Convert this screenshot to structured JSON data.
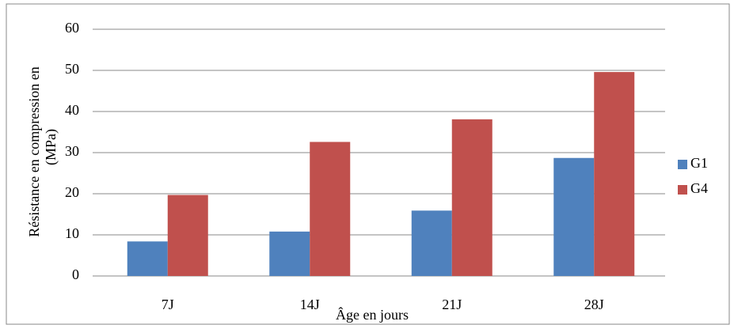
{
  "chart_data": {
    "type": "bar",
    "x_label": "Âge en jours",
    "y_label": [
      "Résistance en compression en",
      "(MPa)"
    ],
    "categories": [
      "7J",
      "14J",
      "21J",
      "28J"
    ],
    "series": [
      {
        "name": "G1",
        "color": "#4f81bd",
        "values": [
          8.4,
          10.8,
          15.9,
          28.7
        ]
      },
      {
        "name": "G4",
        "color": "#c0504d",
        "values": [
          19.7,
          32.6,
          38.1,
          49.6
        ]
      }
    ],
    "ylim": [
      0,
      60
    ],
    "yticks": [
      0,
      10,
      20,
      30,
      40,
      50,
      60
    ],
    "grid": true,
    "legend": "right"
  }
}
